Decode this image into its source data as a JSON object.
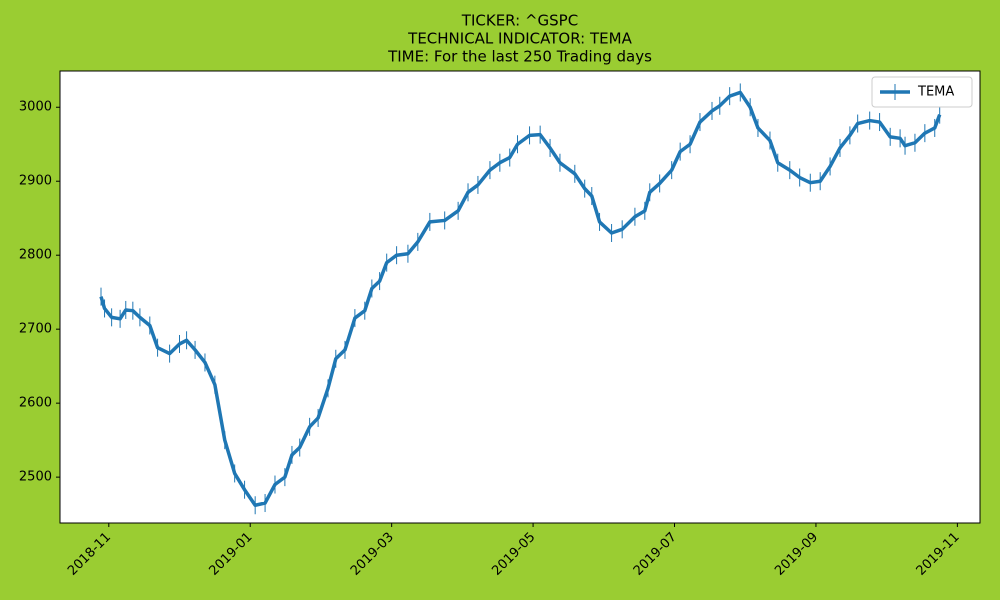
{
  "chart_data": {
    "type": "line",
    "title": [
      "TICKER:  ^GSPC",
      "TECHNICAL INDICATOR:  TEMA",
      "TIME: For the last 250 Trading days"
    ],
    "x": [
      -0.11,
      -0.06,
      0.04,
      0.16,
      0.24,
      0.34,
      0.44,
      0.58,
      0.69,
      0.86,
      1.0,
      1.1,
      1.22,
      1.36,
      1.5,
      1.64,
      1.78,
      1.92,
      2.07,
      2.21,
      2.35,
      2.49,
      2.59,
      2.7,
      2.84,
      2.96,
      3.1,
      3.21,
      3.34,
      3.48,
      3.62,
      3.72,
      3.83,
      3.93,
      4.07,
      4.23,
      4.37,
      4.54,
      4.75,
      4.94,
      5.08,
      5.22,
      5.39,
      5.53,
      5.67,
      5.78,
      5.95,
      6.1,
      6.24,
      6.38,
      6.59,
      6.73,
      6.83,
      6.94,
      7.11,
      7.26,
      7.44,
      7.58,
      7.65,
      7.79,
      7.96,
      8.08,
      8.22,
      8.36,
      8.53,
      8.64,
      8.78,
      8.93,
      9.07,
      9.18,
      9.35,
      9.46,
      9.63,
      9.77,
      9.92,
      10.06,
      10.2,
      10.34,
      10.48,
      10.59,
      10.76,
      10.9,
      11.05,
      11.19,
      11.26,
      11.4,
      11.54,
      11.68,
      11.75
    ],
    "series": [
      {
        "name": "TEMA",
        "color": "#1f77b4",
        "values": [
          2744,
          2728,
          2716,
          2714,
          2726,
          2725,
          2716,
          2705,
          2675,
          2667,
          2680,
          2685,
          2672,
          2655,
          2625,
          2550,
          2505,
          2483,
          2462,
          2465,
          2490,
          2500,
          2530,
          2540,
          2568,
          2580,
          2620,
          2660,
          2672,
          2715,
          2725,
          2755,
          2765,
          2790,
          2800,
          2802,
          2818,
          2845,
          2847,
          2860,
          2885,
          2895,
          2915,
          2925,
          2932,
          2950,
          2962,
          2963,
          2945,
          2925,
          2910,
          2890,
          2880,
          2845,
          2830,
          2835,
          2852,
          2860,
          2885,
          2897,
          2915,
          2940,
          2950,
          2980,
          2995,
          3002,
          3015,
          3020,
          3000,
          2972,
          2955,
          2925,
          2915,
          2905,
          2898,
          2900,
          2920,
          2945,
          2962,
          2978,
          2982,
          2980,
          2960,
          2958,
          2948,
          2952,
          2965,
          2972,
          2990
        ]
      }
    ],
    "xlim": [
      -0.69,
      12.32
    ],
    "xticks": [
      {
        "value": 0,
        "label": "2018-11"
      },
      {
        "value": 2,
        "label": "2019-01"
      },
      {
        "value": 4,
        "label": "2019-03"
      },
      {
        "value": 6,
        "label": "2019-05"
      },
      {
        "value": 8,
        "label": "2019-07"
      },
      {
        "value": 10,
        "label": "2019-09"
      },
      {
        "value": 12,
        "label": "2019-11"
      }
    ],
    "ylim": [
      2438,
      3049
    ],
    "yticks": [
      2500,
      2600,
      2700,
      2800,
      2900,
      3000
    ],
    "legend": "upper right"
  }
}
